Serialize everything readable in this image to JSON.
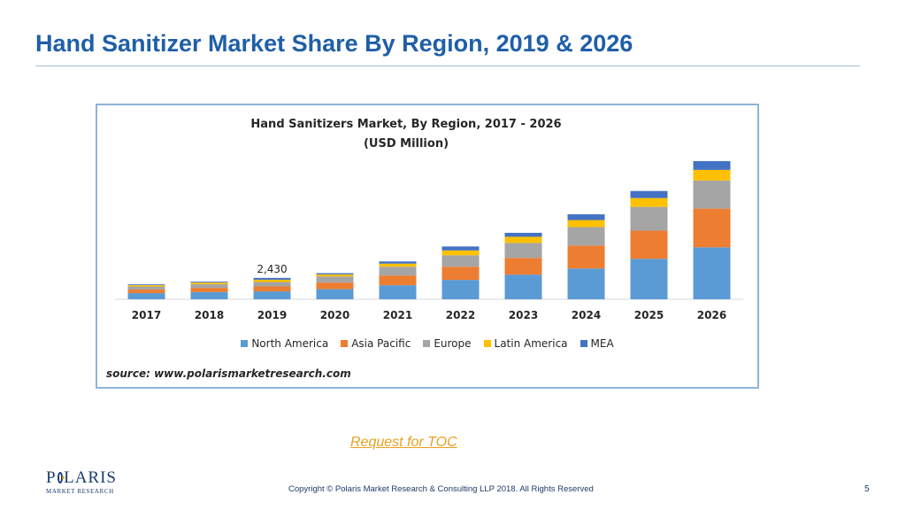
{
  "slide": {
    "title": "Hand Sanitizer Market Share By Region, 2019 & 2026",
    "toc_link": "Request for TOC",
    "copyright": "Copyright © Polaris Market Research & Consulting LLP 2018. All Rights Reserved",
    "page_number": "5",
    "logo_main_a": "P",
    "logo_main_b": "LARIS",
    "logo_sub": "MARKET RESEARCH"
  },
  "chart_data": {
    "type": "bar",
    "stacked": true,
    "title": "Hand Sanitizers Market,  By Region, 2017 - 2026",
    "subtitle": "(USD Million)",
    "source": "source: www.polarismarketresearch.com",
    "categories": [
      "2017",
      "2018",
      "2019",
      "2020",
      "2021",
      "2022",
      "2023",
      "2024",
      "2025",
      "2026"
    ],
    "series": [
      {
        "name": "North America",
        "color": "#5b9bd5",
        "values": [
          700,
          820,
          900,
          1150,
          1600,
          2200,
          2800,
          3500,
          4600,
          5900
        ]
      },
      {
        "name": "Asia Pacific",
        "color": "#ed7d31",
        "values": [
          400,
          480,
          560,
          750,
          1100,
          1500,
          1900,
          2600,
          3200,
          4400
        ]
      },
      {
        "name": "Europe",
        "color": "#a5a5a5",
        "values": [
          350,
          420,
          500,
          700,
          1000,
          1300,
          1700,
          2100,
          2700,
          3200
        ]
      },
      {
        "name": "Latin America",
        "color": "#ffc000",
        "values": [
          150,
          180,
          260,
          230,
          350,
          550,
          700,
          800,
          1000,
          1200
        ]
      },
      {
        "name": "MEA",
        "color": "#4472c4",
        "values": [
          90,
          100,
          210,
          140,
          250,
          450,
          450,
          650,
          800,
          1000
        ]
      }
    ],
    "data_labels": [
      {
        "category": "2019",
        "text": "2,430"
      }
    ],
    "ylim": [
      0,
      17000
    ],
    "grid": false,
    "y_axis_visible": false,
    "legend_position": "bottom"
  }
}
